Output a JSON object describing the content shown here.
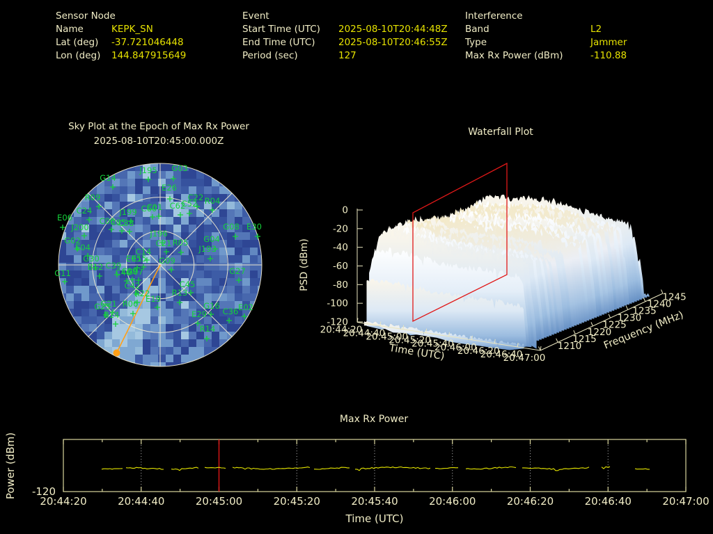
{
  "header": {
    "sensor": {
      "title": "Sensor Node",
      "rows": [
        {
          "label": "Name",
          "value": "KEPK_SN"
        },
        {
          "label": "Lat (deg)",
          "value": "-37.721046448"
        },
        {
          "label": "Lon (deg)",
          "value": "144.847915649"
        }
      ]
    },
    "event": {
      "title": "Event",
      "rows": [
        {
          "label": "Start Time (UTC)",
          "value": "2025-08-10T20:44:48Z"
        },
        {
          "label": "End Time (UTC)",
          "value": "2025-08-10T20:46:55Z"
        },
        {
          "label": "Period (sec)",
          "value": "127"
        }
      ]
    },
    "interference": {
      "title": "Interference",
      "rows": [
        {
          "label": "Band",
          "value": "L2"
        },
        {
          "label": "Type",
          "value": "Jammer"
        },
        {
          "label": "Max Rx Power (dBm)",
          "value": "-110.88"
        }
      ]
    }
  },
  "colors": {
    "background": "#000000",
    "label_cream": "#f1edc6",
    "value_yellow": "#e6e200",
    "satellite_green": "#14d23a",
    "interference_orange": "#ffa018",
    "epoch_red": "#e01818",
    "axis_cream": "#eae6c0",
    "frame_yellow": "#d8d49c",
    "grid_gray": "#b4b4b4",
    "series_yellow": "#e6e600"
  },
  "chart_data": [
    {
      "id": "sky_plot",
      "type": "scatter",
      "title": "Sky Plot at the Epoch of Max Rx Power",
      "subtitle": "2025-08-10T20:45:00.000Z",
      "center": [
        230,
        381
      ],
      "radius": 146,
      "rings": 3,
      "spokes_deg": 45,
      "interference_line_end": [
        167.5,
        507.5
      ],
      "satellites": [
        {
          "id": "J195",
          "label": [
            213,
            245
          ],
          "marker": [
            213,
            258
          ]
        },
        {
          "id": "G03",
          "label": [
            258,
            242
          ],
          "marker": [
            249,
            257
          ]
        },
        {
          "id": "G14",
          "label": [
            155,
            256
          ],
          "marker": [
            162,
            269
          ]
        },
        {
          "id": "E26",
          "label": [
            243,
            270
          ],
          "marker": [
            244,
            286
          ]
        },
        {
          "id": "C22",
          "label": [
            281,
            284
          ],
          "marker": [
            283,
            297
          ]
        },
        {
          "id": "R04",
          "label": [
            305,
            289
          ],
          "marker": [
            305,
            302
          ]
        },
        {
          "id": "C01",
          "label": [
            222,
            298
          ],
          "marker": [
            228,
            311
          ]
        },
        {
          "id": "C62",
          "label": [
            255,
            296
          ],
          "marker": [
            259,
            309
          ]
        },
        {
          "id": "C52",
          "label": [
            272,
            293
          ],
          "marker": [
            272,
            307
          ]
        },
        {
          "id": "J199",
          "label": [
            184,
            305
          ],
          "marker": [
            188,
            318
          ]
        },
        {
          "id": "C60",
          "label": [
            214,
            300
          ],
          "marker": [
            219,
            312
          ]
        },
        {
          "id": "R09",
          "label": [
            133,
            284
          ],
          "marker": [
            142,
            297
          ]
        },
        {
          "id": "C24",
          "label": [
            121,
            303
          ],
          "marker": [
            128,
            316
          ]
        },
        {
          "id": "E06",
          "label": [
            93,
            313
          ],
          "marker": [
            90,
            327
          ]
        },
        {
          "id": "J200",
          "label": [
            115,
            327
          ],
          "marker": [
            121,
            339
          ]
        },
        {
          "id": "C06",
          "label": [
            154,
            318
          ],
          "marker": [
            160,
            330
          ]
        },
        {
          "id": "C38",
          "label": [
            181,
            321
          ],
          "marker": [
            186,
            333
          ]
        },
        {
          "id": "C05",
          "label": [
            170,
            320
          ],
          "marker": [
            175,
            332
          ]
        },
        {
          "id": "G08",
          "label": [
            332,
            326
          ],
          "marker": [
            338,
            340
          ]
        },
        {
          "id": "E30",
          "label": [
            365,
            326
          ],
          "marker": [
            370,
            340
          ]
        },
        {
          "id": "G04",
          "label": [
            304,
            344
          ],
          "marker": [
            309,
            358
          ]
        },
        {
          "id": "J193",
          "label": [
            298,
            358
          ],
          "marker": [
            302,
            372
          ]
        },
        {
          "id": "G02",
          "label": [
            104,
            346
          ],
          "marker": [
            111,
            358
          ]
        },
        {
          "id": "E04",
          "label": [
            119,
            356
          ],
          "marker": [
            126,
            368
          ]
        },
        {
          "id": "G11",
          "label": [
            90,
            393
          ],
          "marker": [
            93,
            405
          ]
        },
        {
          "id": "G30",
          "label": [
            131,
            372
          ],
          "marker": [
            137,
            385
          ]
        },
        {
          "id": "B12",
          "label": [
            137,
            384
          ],
          "marker": [
            143,
            397
          ]
        },
        {
          "id": "C39",
          "label": [
            163,
            382
          ],
          "marker": [
            168,
            395
          ]
        },
        {
          "id": "C40",
          "label": [
            177,
            392
          ],
          "marker": [
            182,
            404
          ]
        },
        {
          "id": "J196",
          "label": [
            228,
            336
          ],
          "marker": [
            233,
            349
          ]
        },
        {
          "id": "C21",
          "label": [
            235,
            350
          ],
          "marker": [
            239,
            362
          ]
        },
        {
          "id": "R05",
          "label": [
            259,
            349
          ],
          "marker": [
            260,
            363
          ]
        },
        {
          "id": "E15",
          "label": [
            200,
            372
          ],
          "marker": [
            206,
            384
          ]
        },
        {
          "id": "E05",
          "label": [
            192,
            372
          ],
          "marker": [
            197,
            385
          ]
        },
        {
          "id": "G09",
          "label": [
            240,
            375
          ],
          "marker": [
            246,
            388
          ]
        },
        {
          "id": "G07",
          "label": [
            194,
            391
          ],
          "marker": [
            199,
            403
          ]
        },
        {
          "id": "C09",
          "label": [
            186,
            390
          ],
          "marker": [
            190,
            402
          ]
        },
        {
          "id": "C14",
          "label": [
            206,
            362
          ],
          "marker": [
            211,
            374
          ]
        },
        {
          "id": "C42",
          "label": [
            190,
            411
          ],
          "marker": [
            196,
            423
          ]
        },
        {
          "id": "R22",
          "label": [
            204,
            422
          ],
          "marker": [
            197,
            435
          ]
        },
        {
          "id": "E19",
          "label": [
            220,
            430
          ],
          "marker": [
            226,
            442
          ]
        },
        {
          "id": "G21",
          "label": [
            156,
            437
          ],
          "marker": [
            162,
            449
          ]
        },
        {
          "id": "G25",
          "label": [
            147,
            441
          ],
          "marker": [
            152,
            453
          ]
        },
        {
          "id": "B14",
          "label": [
            160,
            453
          ],
          "marker": [
            166,
            466
          ]
        },
        {
          "id": "R06",
          "label": [
            187,
            437
          ],
          "marker": [
            191,
            451
          ]
        },
        {
          "id": "G27",
          "label": [
            341,
            390
          ],
          "marker": [
            343,
            403
          ]
        },
        {
          "id": "C45",
          "label": [
            269,
            409
          ],
          "marker": [
            274,
            421
          ]
        },
        {
          "id": "R13",
          "label": [
            258,
            421
          ],
          "marker": [
            258,
            435
          ]
        },
        {
          "id": "G16",
          "label": [
            304,
            440
          ],
          "marker": [
            303,
            452
          ]
        },
        {
          "id": "E29",
          "label": [
            286,
            452
          ],
          "marker": [
            284,
            465
          ]
        },
        {
          "id": "C36",
          "label": [
            331,
            448
          ],
          "marker": [
            329,
            461
          ]
        },
        {
          "id": "E02",
          "label": [
            353,
            442
          ],
          "marker": [
            351,
            455
          ]
        },
        {
          "id": "R14",
          "label": [
            298,
            473
          ],
          "marker": [
            297,
            487
          ]
        }
      ]
    },
    {
      "id": "waterfall",
      "type": "heatmap",
      "title": "Waterfall Plot",
      "zlabel": "PSD (dBm)",
      "z_ticks": [
        "0",
        "-20",
        "-40",
        "-60",
        "-80",
        "-100",
        "-120"
      ],
      "zlim": [
        -120,
        0
      ],
      "xlabel": "Time (UTC)",
      "x_ticks": [
        "20:44:20",
        "20:44:40",
        "20:45:00",
        "20:45:20",
        "20:45:40",
        "20:46:00",
        "20:46:20",
        "20:46:40",
        "20:47:00"
      ],
      "ylabel": "Frequency (MHz)",
      "y_ticks": [
        "1210",
        "1215",
        "1220",
        "1225",
        "1230",
        "1235",
        "1240",
        "1245"
      ],
      "ylim": [
        1210,
        1245
      ],
      "plateau_psd_dbm": [
        -40,
        -20
      ],
      "floor_psd_dbm": -120,
      "epoch_slice_time": "20:45:00",
      "slice_quad": [
        [
          593,
          462
        ],
        [
          593,
          306
        ],
        [
          728,
          235
        ],
        [
          728,
          395
        ]
      ]
    },
    {
      "id": "max_rx_power",
      "type": "line",
      "title": "Max Rx Power",
      "ylabel": "Power (dBm)",
      "xlabel": "Time (UTC)",
      "x_ticks": [
        "20:44:20",
        "20:44:40",
        "20:45:00",
        "20:45:20",
        "20:45:40",
        "20:46:00",
        "20:46:20",
        "20:46:40",
        "20:47:00"
      ],
      "y_tick_labels": [
        "-120"
      ],
      "ylim": [
        -120,
        -100
      ],
      "baseline_dbm": -111,
      "epoch_time": "20:45:00"
    }
  ]
}
